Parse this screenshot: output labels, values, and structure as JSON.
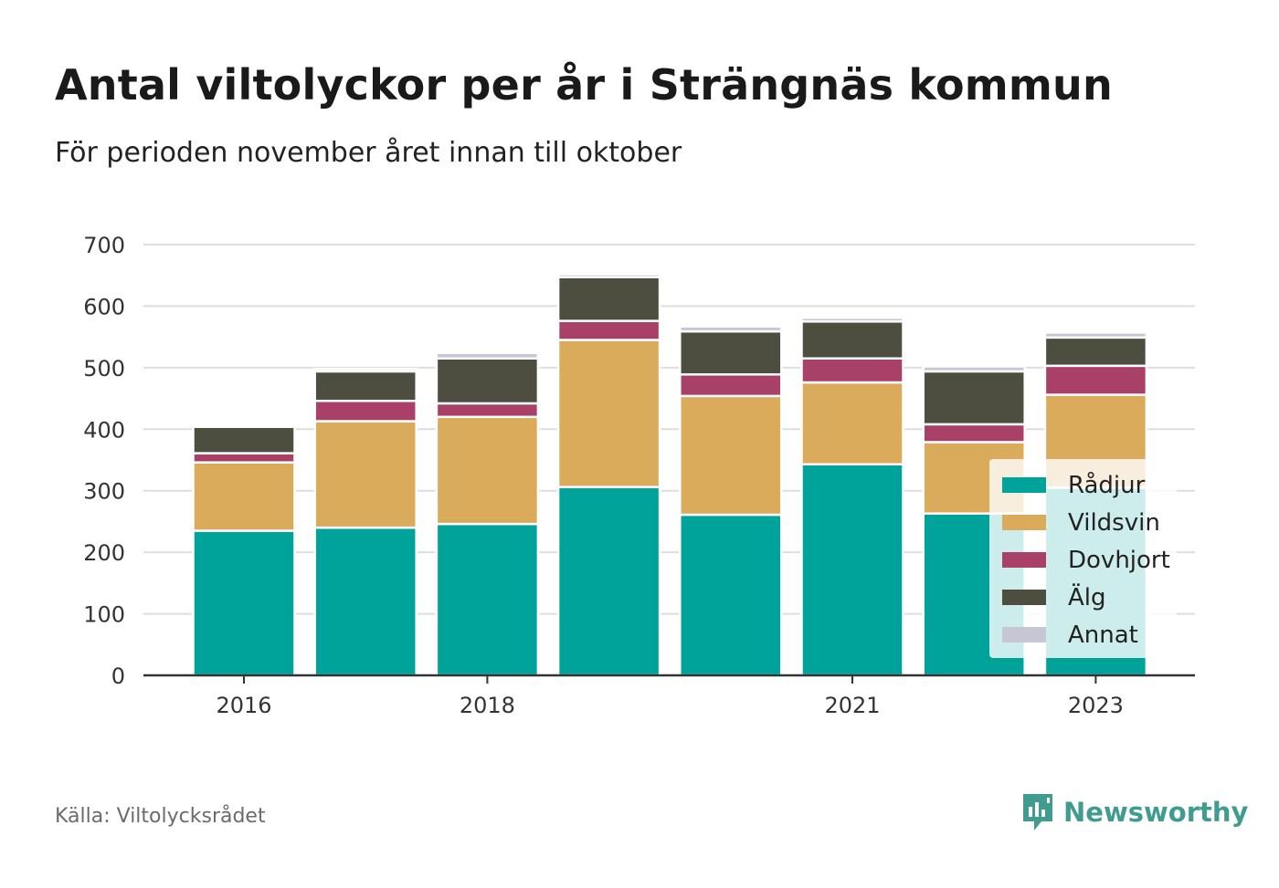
{
  "header": {
    "title": "Antal viltolyckor per år i Strängnäs kommun",
    "subtitle": "För perioden november året innan till oktober"
  },
  "footer": {
    "source": "Källa: Viltolycksrådet",
    "brand": "Newsworthy",
    "brand_icon": "bar-chart-speech-bubble-icon"
  },
  "chart_data": {
    "type": "bar",
    "stacked": true,
    "categories": [
      "2016",
      "2017",
      "2018",
      "2019",
      "2020",
      "2021",
      "2022",
      "2023"
    ],
    "x_tick_labels": [
      "2016",
      "2018",
      "2021",
      "2023"
    ],
    "ylim": [
      0,
      700
    ],
    "y_ticks": [
      0,
      100,
      200,
      300,
      400,
      500,
      600,
      700
    ],
    "xlabel": "",
    "ylabel": "",
    "grid": true,
    "legend_position": "bottom-right",
    "series": [
      {
        "name": "Rådjur",
        "color": "#00a39a",
        "values": [
          235,
          240,
          246,
          306,
          261,
          343,
          263,
          305
        ]
      },
      {
        "name": "Vildsvin",
        "color": "#d9ab5b",
        "values": [
          111,
          173,
          174,
          239,
          193,
          133,
          116,
          151
        ]
      },
      {
        "name": "Dovhjort",
        "color": "#a84068",
        "values": [
          15,
          33,
          22,
          31,
          35,
          39,
          29,
          47
        ]
      },
      {
        "name": "Älg",
        "color": "#4d4e40",
        "values": [
          43,
          48,
          73,
          71,
          70,
          60,
          86,
          46
        ]
      },
      {
        "name": "Annat",
        "color": "#c6c6d4",
        "values": [
          3,
          4,
          9,
          5,
          8,
          6,
          8,
          8
        ]
      }
    ]
  }
}
